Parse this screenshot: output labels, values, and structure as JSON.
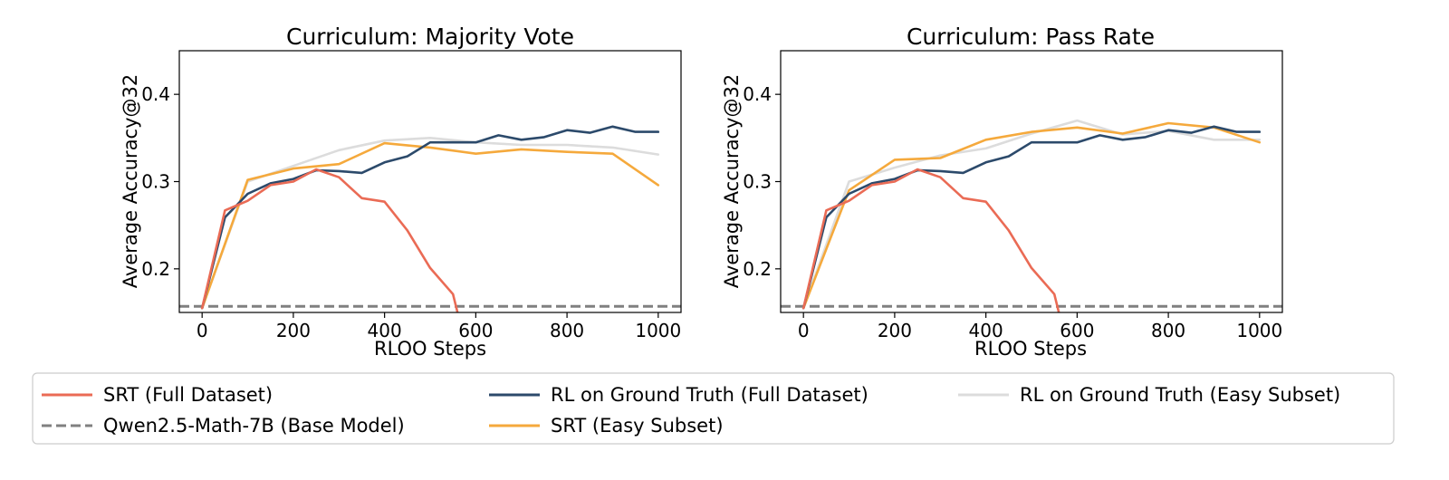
{
  "chart_data": [
    {
      "type": "line",
      "title": "Curriculum: Majority Vote",
      "xlabel": "RLOO Steps",
      "ylabel": "Average Accuracy@32",
      "xlim": [
        -50,
        1050
      ],
      "ylim": [
        0.15,
        0.45
      ],
      "xticks": [
        0,
        200,
        400,
        600,
        800,
        1000
      ],
      "yticks": [
        0.2,
        0.3,
        0.4
      ],
      "grid": false,
      "series": [
        {
          "name": "RL on Ground Truth (Easy Subset)",
          "color": "#dcdcdc",
          "x": [
            0,
            100,
            200,
            300,
            400,
            500,
            600,
            700,
            800,
            900,
            1000
          ],
          "y": [
            0.155,
            0.3,
            0.318,
            0.336,
            0.347,
            0.35,
            0.345,
            0.342,
            0.342,
            0.339,
            0.331
          ]
        },
        {
          "name": "SRT (Easy Subset)",
          "color": "#f5a93c",
          "x": [
            0,
            100,
            200,
            300,
            400,
            500,
            600,
            700,
            800,
            900,
            1000
          ],
          "y": [
            0.155,
            0.302,
            0.315,
            0.32,
            0.344,
            0.339,
            0.332,
            0.337,
            0.334,
            0.332,
            0.296
          ]
        },
        {
          "name": "RL on Ground Truth (Full Dataset)",
          "color": "#2c4a6b",
          "x": [
            0,
            50,
            100,
            150,
            200,
            250,
            300,
            350,
            400,
            450,
            500,
            550,
            600,
            650,
            700,
            750,
            800,
            850,
            900,
            950,
            1000
          ],
          "y": [
            0.155,
            0.259,
            0.286,
            0.298,
            0.303,
            0.313,
            0.312,
            0.31,
            0.322,
            0.329,
            0.345,
            0.345,
            0.345,
            0.353,
            0.348,
            0.351,
            0.359,
            0.356,
            0.363,
            0.357,
            0.357
          ]
        },
        {
          "name": "SRT (Full Dataset)",
          "color": "#ea6b55",
          "x": [
            0,
            50,
            100,
            150,
            200,
            250,
            300,
            350,
            400,
            450,
            500,
            550,
            560
          ],
          "y": [
            0.155,
            0.267,
            0.278,
            0.296,
            0.3,
            0.314,
            0.305,
            0.281,
            0.277,
            0.244,
            0.201,
            0.171,
            0.15
          ]
        }
      ],
      "baseline": {
        "name": "Qwen2.5-Math-7B (Base Model)",
        "color": "#808080",
        "y": 0.157
      }
    },
    {
      "type": "line",
      "title": "Curriculum: Pass Rate",
      "xlabel": "RLOO Steps",
      "ylabel": "Average Accuracy@32",
      "xlim": [
        -50,
        1050
      ],
      "ylim": [
        0.15,
        0.45
      ],
      "xticks": [
        0,
        200,
        400,
        600,
        800,
        1000
      ],
      "yticks": [
        0.2,
        0.3,
        0.4
      ],
      "grid": false,
      "series": [
        {
          "name": "RL on Ground Truth (Easy Subset)",
          "color": "#dcdcdc",
          "x": [
            0,
            100,
            200,
            300,
            400,
            500,
            600,
            700,
            800,
            900,
            1000
          ],
          "y": [
            0.155,
            0.3,
            0.316,
            0.33,
            0.338,
            0.355,
            0.37,
            0.354,
            0.358,
            0.348,
            0.348
          ]
        },
        {
          "name": "SRT (Easy Subset)",
          "color": "#f5a93c",
          "x": [
            0,
            100,
            200,
            300,
            400,
            500,
            600,
            700,
            800,
            900,
            1000
          ],
          "y": [
            0.155,
            0.29,
            0.325,
            0.327,
            0.348,
            0.357,
            0.362,
            0.355,
            0.367,
            0.362,
            0.345
          ]
        },
        {
          "name": "RL on Ground Truth (Full Dataset)",
          "color": "#2c4a6b",
          "x": [
            0,
            50,
            100,
            150,
            200,
            250,
            300,
            350,
            400,
            450,
            500,
            550,
            600,
            650,
            700,
            750,
            800,
            850,
            900,
            950,
            1000
          ],
          "y": [
            0.155,
            0.259,
            0.286,
            0.298,
            0.303,
            0.313,
            0.312,
            0.31,
            0.322,
            0.329,
            0.345,
            0.345,
            0.345,
            0.353,
            0.348,
            0.351,
            0.359,
            0.356,
            0.363,
            0.357,
            0.357
          ]
        },
        {
          "name": "SRT (Full Dataset)",
          "color": "#ea6b55",
          "x": [
            0,
            50,
            100,
            150,
            200,
            250,
            300,
            350,
            400,
            450,
            500,
            550,
            560
          ],
          "y": [
            0.155,
            0.267,
            0.278,
            0.296,
            0.3,
            0.314,
            0.305,
            0.281,
            0.277,
            0.244,
            0.201,
            0.171,
            0.15
          ]
        }
      ],
      "baseline": {
        "name": "Qwen2.5-Math-7B (Base Model)",
        "color": "#808080",
        "y": 0.157
      }
    }
  ],
  "legend": {
    "placement": "bottom",
    "items": [
      {
        "label": "SRT (Full Dataset)",
        "color": "#ea6b55",
        "style": "solid"
      },
      {
        "label": "Qwen2.5-Math-7B (Base Model)",
        "color": "#808080",
        "style": "dashed"
      },
      {
        "label": "RL on Ground Truth (Full Dataset)",
        "color": "#2c4a6b",
        "style": "solid"
      },
      {
        "label": "SRT (Easy Subset)",
        "color": "#f5a93c",
        "style": "solid"
      },
      {
        "label": "RL on Ground Truth (Easy Subset)",
        "color": "#dcdcdc",
        "style": "solid"
      }
    ]
  }
}
